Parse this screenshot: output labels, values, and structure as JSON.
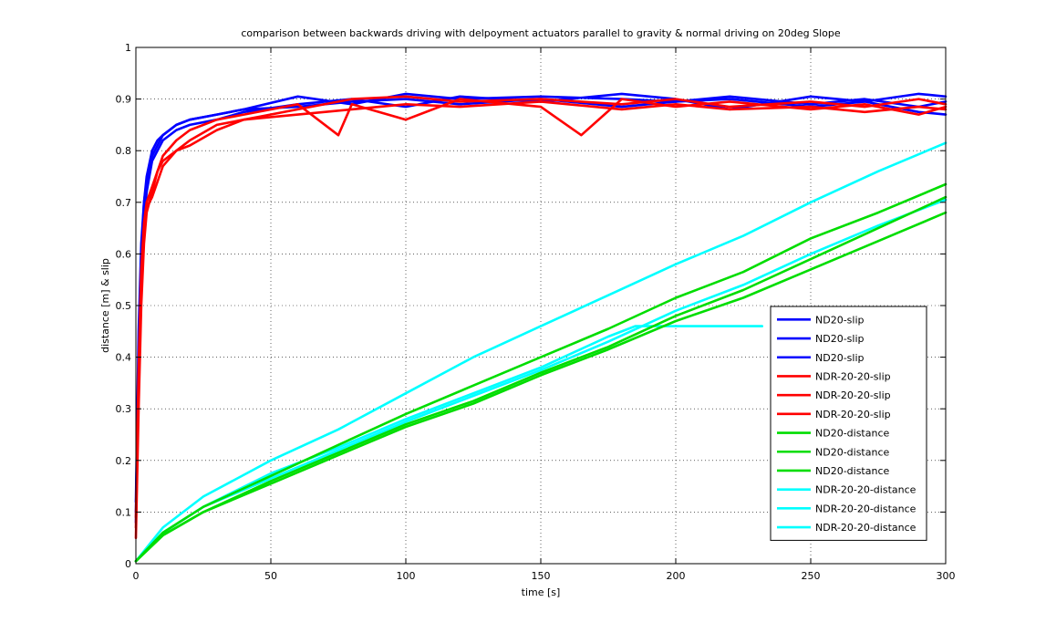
{
  "chart_data": {
    "type": "line",
    "title": "comparison between backwards driving with delpoyment actuators parallel to gravity & normal driving on 20deg Slope",
    "xlabel": "time [s]",
    "ylabel": "distance [m] & slip",
    "xlim": [
      0,
      300
    ],
    "ylim": [
      0,
      1
    ],
    "x_ticks": [
      0,
      50,
      100,
      150,
      200,
      250,
      300
    ],
    "y_ticks": [
      0,
      0.1,
      0.2,
      0.3,
      0.4,
      0.5,
      0.6,
      0.7,
      0.8,
      0.9,
      1
    ],
    "grid": true,
    "legend_position": "lower-right",
    "series": [
      {
        "name": "ND20-slip",
        "color": "#0000ff",
        "x": [
          0,
          1,
          2,
          3,
          4,
          6,
          8,
          10,
          15,
          20,
          30,
          40,
          60,
          80,
          100,
          120,
          150,
          180,
          200,
          220,
          250,
          270,
          290,
          300
        ],
        "y": [
          0.1,
          0.4,
          0.6,
          0.7,
          0.75,
          0.8,
          0.82,
          0.83,
          0.85,
          0.86,
          0.87,
          0.88,
          0.905,
          0.89,
          0.91,
          0.9,
          0.905,
          0.9,
          0.895,
          0.905,
          0.89,
          0.9,
          0.885,
          0.895
        ]
      },
      {
        "name": "ND20-slip",
        "color": "#0000ff",
        "x": [
          0,
          1,
          2,
          3,
          4,
          6,
          8,
          10,
          15,
          20,
          30,
          40,
          60,
          80,
          100,
          120,
          150,
          180,
          200,
          220,
          250,
          270,
          290,
          300
        ],
        "y": [
          0.08,
          0.35,
          0.55,
          0.66,
          0.72,
          0.78,
          0.8,
          0.82,
          0.84,
          0.85,
          0.86,
          0.875,
          0.89,
          0.9,
          0.885,
          0.905,
          0.895,
          0.91,
          0.9,
          0.88,
          0.905,
          0.895,
          0.91,
          0.905
        ]
      },
      {
        "name": "ND20-slip",
        "color": "#0000ff",
        "x": [
          0,
          1,
          2,
          3,
          4,
          6,
          8,
          10,
          15,
          20,
          30,
          40,
          60,
          80,
          100,
          120,
          150,
          180,
          200,
          220,
          250,
          270,
          290,
          300
        ],
        "y": [
          0.12,
          0.45,
          0.62,
          0.7,
          0.74,
          0.79,
          0.81,
          0.83,
          0.85,
          0.86,
          0.87,
          0.88,
          0.885,
          0.895,
          0.9,
          0.89,
          0.9,
          0.885,
          0.895,
          0.9,
          0.885,
          0.895,
          0.875,
          0.87
        ]
      },
      {
        "name": "NDR-20-20-slip",
        "color": "#ff0000",
        "x": [
          0,
          1,
          2,
          3,
          4,
          6,
          8,
          10,
          15,
          20,
          30,
          40,
          60,
          75,
          80,
          100,
          120,
          150,
          165,
          180,
          200,
          220,
          250,
          270,
          290,
          300
        ],
        "y": [
          0.05,
          0.3,
          0.5,
          0.62,
          0.68,
          0.72,
          0.76,
          0.79,
          0.82,
          0.84,
          0.86,
          0.87,
          0.89,
          0.83,
          0.89,
          0.86,
          0.9,
          0.885,
          0.83,
          0.9,
          0.885,
          0.895,
          0.88,
          0.89,
          0.87,
          0.885
        ]
      },
      {
        "name": "NDR-20-20-slip",
        "color": "#ff0000",
        "x": [
          0,
          1,
          2,
          3,
          4,
          6,
          8,
          10,
          15,
          20,
          30,
          40,
          60,
          80,
          100,
          120,
          150,
          180,
          200,
          220,
          250,
          270,
          290,
          300
        ],
        "y": [
          0.07,
          0.35,
          0.55,
          0.64,
          0.69,
          0.71,
          0.74,
          0.77,
          0.8,
          0.82,
          0.85,
          0.86,
          0.88,
          0.9,
          0.905,
          0.895,
          0.9,
          0.89,
          0.9,
          0.885,
          0.895,
          0.885,
          0.9,
          0.89
        ]
      },
      {
        "name": "NDR-20-20-slip",
        "color": "#ff0000",
        "x": [
          0,
          1,
          2,
          3,
          4,
          6,
          8,
          10,
          15,
          20,
          30,
          40,
          60,
          80,
          100,
          120,
          150,
          180,
          200,
          220,
          250,
          270,
          290,
          300
        ],
        "y": [
          0.09,
          0.38,
          0.57,
          0.66,
          0.7,
          0.73,
          0.76,
          0.78,
          0.8,
          0.81,
          0.84,
          0.86,
          0.87,
          0.88,
          0.89,
          0.885,
          0.895,
          0.88,
          0.89,
          0.88,
          0.885,
          0.875,
          0.885,
          0.88
        ]
      },
      {
        "name": "ND20-distance",
        "color": "#00dd00",
        "x": [
          0,
          10,
          25,
          50,
          75,
          100,
          125,
          150,
          175,
          200,
          225,
          250,
          275,
          300
        ],
        "y": [
          0.005,
          0.06,
          0.11,
          0.17,
          0.23,
          0.29,
          0.345,
          0.4,
          0.455,
          0.515,
          0.565,
          0.63,
          0.68,
          0.735
        ]
      },
      {
        "name": "ND20-distance",
        "color": "#00dd00",
        "x": [
          0,
          10,
          25,
          50,
          75,
          100,
          125,
          150,
          175,
          200,
          225,
          250,
          275,
          300
        ],
        "y": [
          0.005,
          0.055,
          0.1,
          0.16,
          0.215,
          0.27,
          0.315,
          0.37,
          0.42,
          0.48,
          0.53,
          0.59,
          0.65,
          0.71
        ]
      },
      {
        "name": "ND20-distance",
        "color": "#00dd00",
        "x": [
          0,
          10,
          25,
          50,
          75,
          100,
          125,
          150,
          175,
          200,
          225,
          250,
          275,
          300
        ],
        "y": [
          0.005,
          0.055,
          0.1,
          0.155,
          0.21,
          0.265,
          0.31,
          0.365,
          0.415,
          0.47,
          0.515,
          0.57,
          0.625,
          0.68
        ]
      },
      {
        "name": "NDR-20-20-distance",
        "color": "#00ffff",
        "x": [
          0,
          10,
          25,
          50,
          75,
          100,
          125,
          150,
          175,
          200,
          225,
          250,
          275,
          300
        ],
        "y": [
          0.005,
          0.07,
          0.13,
          0.2,
          0.26,
          0.33,
          0.4,
          0.46,
          0.52,
          0.58,
          0.635,
          0.7,
          0.76,
          0.815
        ]
      },
      {
        "name": "NDR-20-20-distance",
        "color": "#00ffff",
        "x": [
          0,
          10,
          25,
          50,
          75,
          100,
          125,
          150,
          175,
          185,
          200,
          232
        ],
        "y": [
          0.005,
          0.06,
          0.11,
          0.175,
          0.225,
          0.28,
          0.33,
          0.38,
          0.44,
          0.46,
          0.46,
          0.46
        ]
      },
      {
        "name": "NDR-20-20-distance",
        "color": "#00ffff",
        "x": [
          0,
          10,
          25,
          50,
          75,
          100,
          125,
          150,
          175,
          200,
          225,
          250,
          275,
          300
        ],
        "y": [
          0.005,
          0.06,
          0.11,
          0.165,
          0.22,
          0.275,
          0.325,
          0.375,
          0.43,
          0.49,
          0.54,
          0.6,
          0.655,
          0.705
        ]
      }
    ]
  }
}
